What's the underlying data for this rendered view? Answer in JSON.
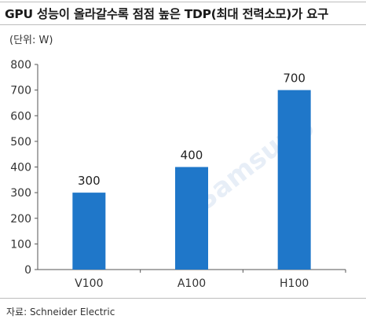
{
  "title": "GPU 성능이 올라갈수록 점점 높은 TDP(최대 전력소모)가 요구",
  "unit_label": "(단위: W)",
  "source": "자료: Schneider Electric",
  "watermark": "Samsung",
  "colors": {
    "bar": "#1f77c9",
    "axis": "#555555",
    "rule": "#bdbdbd"
  },
  "chart_data": {
    "type": "bar",
    "title": "GPU 성능이 올라갈수록 점점 높은 TDP(최대 전력소모)가 요구",
    "xlabel": "",
    "ylabel": "(단위: W)",
    "categories": [
      "V100",
      "A100",
      "H100"
    ],
    "values": [
      300,
      400,
      700
    ],
    "data_labels": [
      "300",
      "400",
      "700"
    ],
    "ylim": [
      0,
      800
    ],
    "yticks": [
      0,
      100,
      200,
      300,
      400,
      500,
      600,
      700,
      800
    ],
    "grid": false,
    "legend": "none"
  }
}
